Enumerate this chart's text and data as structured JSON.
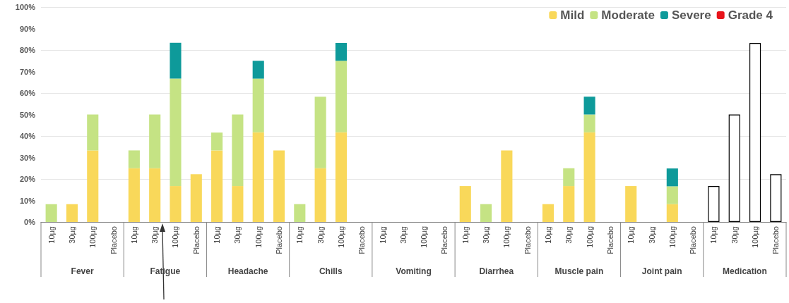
{
  "chart_data": {
    "type": "bar",
    "stacked": true,
    "categories": [
      "10µg",
      "30µg",
      "100µg",
      "Placebo",
      "10µg",
      "30µg",
      "100µg",
      "Placebo",
      "10µg",
      "30µg",
      "100µg",
      "Placebo",
      "10µg",
      "30µg",
      "100µg",
      "Placebo",
      "10µg",
      "30µg",
      "100µg",
      "Placebo",
      "10µg",
      "30µg",
      "100µg",
      "Placebo",
      "10µg",
      "30µg",
      "100µg",
      "Placebo",
      "10µg",
      "30µg",
      "100µg",
      "Placebo",
      "10µg",
      "30µg",
      "100µg",
      "Placebo"
    ],
    "annotations": [
      "Fever",
      "Fatigue",
      "Headache",
      "Chills",
      "Vomiting",
      "Diarrhea",
      "Muscle pain",
      "Joint pain",
      "Medication"
    ],
    "series": [
      {
        "name": "Mild",
        "color": "#f9d85a",
        "values": [
          0,
          8.3,
          33.3,
          0,
          25,
          25,
          16.7,
          22.2,
          33.3,
          16.7,
          41.7,
          33.3,
          0,
          25,
          41.7,
          0,
          0,
          0,
          0,
          0,
          16.7,
          0,
          33.3,
          0,
          8.3,
          16.7,
          41.7,
          0,
          16.7,
          0,
          8.3,
          0,
          null,
          null,
          null,
          null
        ]
      },
      {
        "name": "Moderate",
        "color": "#c5e384",
        "values": [
          8.3,
          0,
          16.7,
          0,
          8.3,
          25,
          50,
          0,
          8.3,
          33.3,
          25,
          0,
          8.3,
          33.3,
          33.3,
          0,
          0,
          0,
          0,
          0,
          0,
          8.3,
          0,
          0,
          0,
          8.3,
          8.3,
          0,
          0,
          0,
          8.3,
          0,
          null,
          null,
          null,
          null
        ]
      },
      {
        "name": "Severe",
        "color": "#0e9a9a",
        "values": [
          0,
          0,
          0,
          0,
          0,
          0,
          16.7,
          0,
          0,
          0,
          8.3,
          0,
          0,
          0,
          8.3,
          0,
          0,
          0,
          0,
          0,
          0,
          0,
          0,
          0,
          0,
          0,
          8.3,
          0,
          0,
          0,
          8.3,
          0,
          null,
          null,
          null,
          null
        ]
      },
      {
        "name": "Grade 4",
        "color": "#e8141b",
        "values": [
          0,
          0,
          0,
          0,
          0,
          0,
          0,
          0,
          0,
          0,
          0,
          0,
          0,
          0,
          0,
          0,
          0,
          0,
          0,
          0,
          0,
          0,
          0,
          0,
          0,
          0,
          0,
          0,
          0,
          0,
          0,
          0,
          null,
          null,
          null,
          null
        ]
      },
      {
        "color": "#ffffff",
        "values": [
          null,
          null,
          null,
          null,
          null,
          null,
          null,
          null,
          null,
          null,
          null,
          null,
          null,
          null,
          null,
          null,
          null,
          null,
          null,
          null,
          null,
          null,
          null,
          null,
          null,
          null,
          null,
          null,
          null,
          null,
          null,
          null,
          16.7,
          50,
          83.3,
          22.2
        ]
      }
    ],
    "ylim": [
      0,
      100
    ],
    "yticks": [
      {
        "value": 0,
        "label": "0%"
      },
      {
        "value": 10,
        "label": "10%"
      },
      {
        "value": 20,
        "label": "20%"
      },
      {
        "value": 30,
        "label": "30%"
      },
      {
        "value": 40,
        "label": "40%"
      },
      {
        "value": 50,
        "label": "50%"
      },
      {
        "value": 60,
        "label": "60%"
      },
      {
        "value": 70,
        "label": "70%"
      },
      {
        "value": 80,
        "label": "80%"
      },
      {
        "value": 90,
        "label": "90%"
      },
      {
        "value": 100,
        "label": "100%"
      }
    ],
    "grid": "y",
    "legend": "top right"
  }
}
